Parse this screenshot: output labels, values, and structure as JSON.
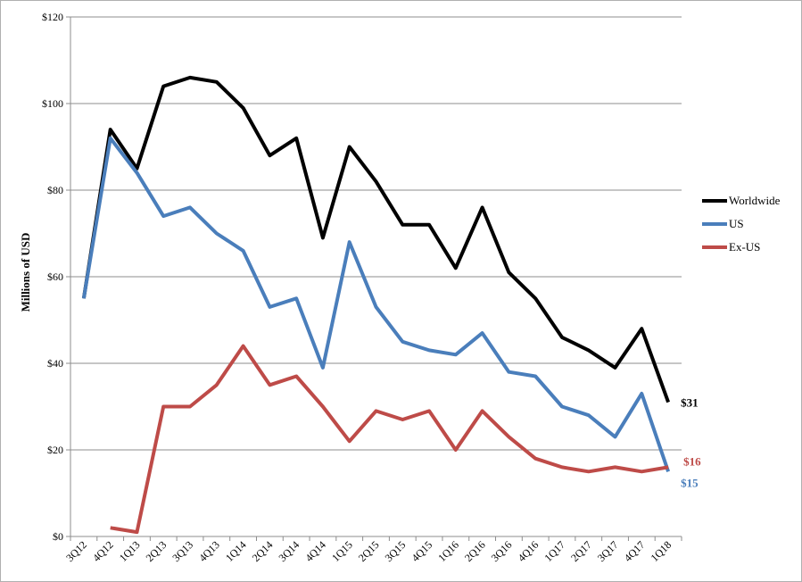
{
  "chart_data": {
    "type": "line",
    "ylabel": "Millions of USD",
    "ylim": [
      0,
      120
    ],
    "yticks": [
      "$0",
      "$20",
      "$40",
      "$60",
      "$80",
      "$100",
      "$120"
    ],
    "grid": "horizontal",
    "legend_position": "right",
    "categories": [
      "3Q12",
      "4Q12",
      "1Q13",
      "2Q13",
      "3Q13",
      "4Q13",
      "1Q14",
      "2Q14",
      "3Q14",
      "4Q14",
      "1Q15",
      "2Q15",
      "3Q15",
      "4Q15",
      "1Q16",
      "2Q16",
      "3Q16",
      "4Q16",
      "1Q17",
      "2Q17",
      "3Q17",
      "4Q17",
      "1Q18"
    ],
    "series": [
      {
        "name": "Worldwide",
        "color": "#000000",
        "values": [
          55,
          94,
          85,
          104,
          106,
          105,
          99,
          88,
          92,
          69,
          90,
          82,
          72,
          72,
          62,
          76,
          61,
          55,
          46,
          43,
          39,
          48,
          31
        ],
        "end_label": "$31"
      },
      {
        "name": "US",
        "color": "#4a7ebb",
        "values": [
          55,
          92,
          84,
          74,
          76,
          70,
          66,
          53,
          55,
          39,
          68,
          53,
          45,
          43,
          42,
          47,
          38,
          37,
          30,
          28,
          23,
          33,
          15
        ],
        "end_label": "$15"
      },
      {
        "name": "Ex-US",
        "color": "#be4b48",
        "values": [
          null,
          2,
          1,
          30,
          30,
          35,
          44,
          35,
          37,
          30,
          22,
          29,
          27,
          29,
          20,
          29,
          23,
          18,
          16,
          15,
          16,
          15,
          16
        ],
        "end_label": "$16"
      }
    ]
  }
}
